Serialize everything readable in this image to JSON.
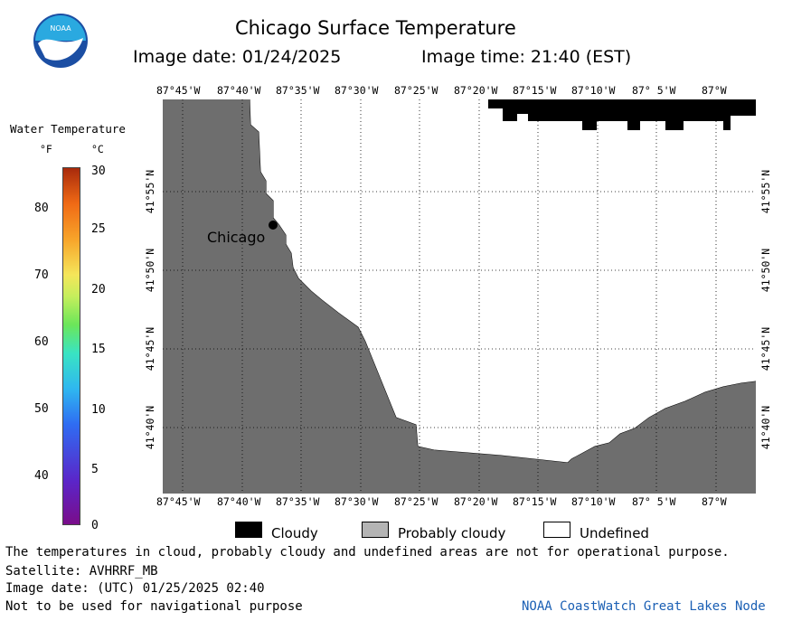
{
  "header": {
    "title": "Chicago Surface Temperature",
    "image_date": "Image date: 01/24/2025",
    "image_time": "Image time: 21:40 (EST)"
  },
  "logo": {
    "text": "NOAA",
    "colors": {
      "outer": "#1b4ea3",
      "inner": "#2aa9e0",
      "bird": "#ffffff"
    }
  },
  "colorbar": {
    "title": "Water Temperature",
    "unit_f": "°F",
    "unit_c": "°C",
    "f_ticks": [
      "80",
      "70",
      "60",
      "50",
      "40"
    ],
    "c_ticks": [
      "30",
      "25",
      "20",
      "15",
      "10",
      "5",
      "0"
    ]
  },
  "map": {
    "lon_labels_top": [
      "87°45'W",
      "87°40'W",
      "87°35'W",
      "87°30'W",
      "87°25'W",
      "87°20'W",
      "87°15'W",
      "87°10'W",
      "87° 5'W",
      "87°W"
    ],
    "lon_labels_bottom": [
      "87°45'W",
      "87°40'W",
      "87°35'W",
      "87°30'W",
      "87°25'W",
      "87°20'W",
      "87°15'W",
      "87°10'W",
      "87° 5'W",
      "87°W"
    ],
    "lat_labels": [
      "41°55'N",
      "41°50'N",
      "41°45'N",
      "41°40'N"
    ],
    "city": "Chicago",
    "colors": {
      "land": "#6e6e6e",
      "water_undefined": "#ffffff",
      "cloud": "#000000",
      "grid": "#000000"
    }
  },
  "legend": [
    {
      "label": "Cloudy",
      "color": "#000000"
    },
    {
      "label": "Probably cloudy",
      "color": "#b4b4b4"
    },
    {
      "label": "Undefined",
      "color": "#ffffff"
    }
  ],
  "footer": {
    "note": "The temperatures in cloud, probably cloudy and undefined areas are not for operational purpose.",
    "satellite": "Satellite: AVHRRF_MB",
    "utc_date": "Image date: (UTC) 01/25/2025  02:40",
    "nav_warning": "Not to be used for navigational purpose",
    "credit": "NOAA CoastWatch Great Lakes Node"
  }
}
